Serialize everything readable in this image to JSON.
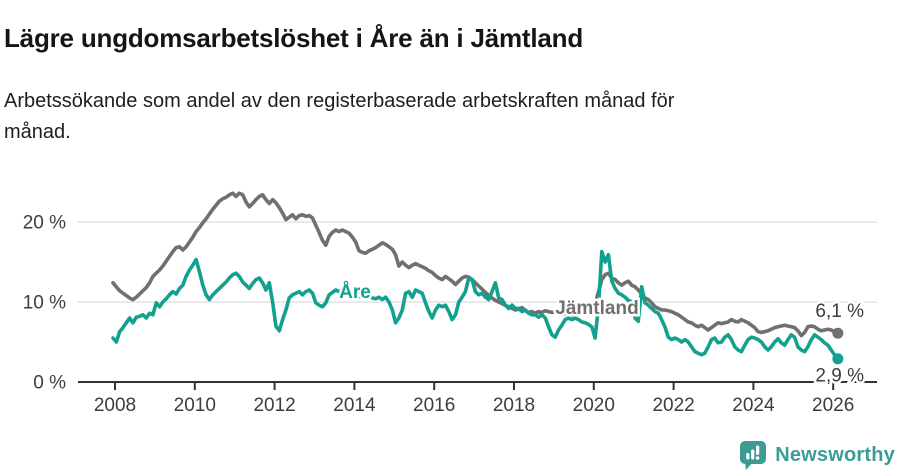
{
  "header": {
    "title": "Lägre ungdomsarbetslöshet i Åre än i Jämtland",
    "subtitle": "Arbetssökande som andel av den registerbaserade arbetskraften månad för månad."
  },
  "chart_data": {
    "type": "line",
    "title": "Lägre ungdomsarbetslöshet i Åre än i Jämtland",
    "subtitle": "Arbetssökande som andel av den registerbaserade arbetskraften månad för månad.",
    "x_unit": "month",
    "x_start": "2008-01",
    "x_end": "2026-03",
    "x_tick_years": [
      2008,
      2010,
      2012,
      2014,
      2016,
      2018,
      2020,
      2022,
      2024,
      2026
    ],
    "y_axis": {
      "ticks": [
        {
          "value": 0,
          "label": "0 %"
        },
        {
          "value": 10,
          "label": "10 %"
        },
        {
          "value": 20,
          "label": "20 %"
        }
      ],
      "min": 0,
      "max": 24,
      "grid": "horizontal"
    },
    "legend_position": "inline-labels",
    "series": [
      {
        "name": "Jämtland",
        "color": "#707070",
        "end_value": 6.1,
        "end_label": "6,1 %",
        "values": [
          12.4,
          11.9,
          11.4,
          11.1,
          10.8,
          10.5,
          10.3,
          10.6,
          11.0,
          11.4,
          11.8,
          12.4,
          13.2,
          13.6,
          14.0,
          14.5,
          15.1,
          15.7,
          16.3,
          16.8,
          16.9,
          16.5,
          16.9,
          17.5,
          18.1,
          18.8,
          19.3,
          19.9,
          20.4,
          21.0,
          21.6,
          22.1,
          22.6,
          22.9,
          23.1,
          23.4,
          23.6,
          23.2,
          23.6,
          23.4,
          22.5,
          21.9,
          22.3,
          22.8,
          23.2,
          23.4,
          22.8,
          22.3,
          22.8,
          22.4,
          21.8,
          21.1,
          20.3,
          20.6,
          20.9,
          20.4,
          20.8,
          20.9,
          20.7,
          20.8,
          20.5,
          19.6,
          18.7,
          17.7,
          17.1,
          18.2,
          18.7,
          19.0,
          18.8,
          19.0,
          18.8,
          18.6,
          18.1,
          17.5,
          16.4,
          16.2,
          16.1,
          16.4,
          16.6,
          16.8,
          17.1,
          17.4,
          17.2,
          16.9,
          16.6,
          15.9,
          14.5,
          15.0,
          14.6,
          14.3,
          14.6,
          14.8,
          14.6,
          14.4,
          14.2,
          13.9,
          13.7,
          13.3,
          13.0,
          12.8,
          13.2,
          12.9,
          12.6,
          12.2,
          12.6,
          13.0,
          13.2,
          13.1,
          12.8,
          12.4,
          12.0,
          11.6,
          11.2,
          10.8,
          10.5,
          10.2,
          10.0,
          9.8,
          9.6,
          9.4,
          9.2,
          9.0,
          9.1,
          9.3,
          8.9,
          8.7,
          8.8,
          8.6,
          8.8,
          8.7,
          8.9,
          8.8,
          8.7,
          8.8,
          8.6,
          8.7,
          8.5,
          8.6,
          8.4,
          8.5,
          8.6,
          8.8,
          8.9,
          9.1,
          9.4,
          9.8,
          11.3,
          12.8,
          13.4,
          13.6,
          13.0,
          12.8,
          12.4,
          12.1,
          12.4,
          12.6,
          12.1,
          11.9,
          11.5,
          11.0,
          10.5,
          10.3,
          9.9,
          9.4,
          9.2,
          9.0,
          9.0,
          8.9,
          8.8,
          8.6,
          8.4,
          8.1,
          7.8,
          7.5,
          7.4,
          7.1,
          6.9,
          7.1,
          6.8,
          6.5,
          6.8,
          7.1,
          7.4,
          7.3,
          7.4,
          7.5,
          7.8,
          7.6,
          7.5,
          7.8,
          7.6,
          7.4,
          7.1,
          6.8,
          6.3,
          6.2,
          6.3,
          6.4,
          6.6,
          6.8,
          6.9,
          7.0,
          7.1,
          7.0,
          6.9,
          6.8,
          6.4,
          5.8,
          6.2,
          6.9,
          7.0,
          6.9,
          6.6,
          6.4,
          6.5,
          6.6,
          6.5,
          6.3,
          6.1
        ]
      },
      {
        "name": "Åre",
        "color": "#13a18f",
        "end_value": 2.9,
        "end_label": "2,9 %",
        "values": [
          5.5,
          5.0,
          6.3,
          6.8,
          7.4,
          8.0,
          7.4,
          8.1,
          8.2,
          8.4,
          8.0,
          8.6,
          8.4,
          9.9,
          9.4,
          10.0,
          10.4,
          10.9,
          11.3,
          11.0,
          11.7,
          12.1,
          13.2,
          14.0,
          14.6,
          15.3,
          13.8,
          12.1,
          10.9,
          10.3,
          10.9,
          11.3,
          11.7,
          12.1,
          12.5,
          13.0,
          13.4,
          13.6,
          13.2,
          12.5,
          12.1,
          11.7,
          12.3,
          12.8,
          13.0,
          12.4,
          11.5,
          12.4,
          10.0,
          7.0,
          6.4,
          7.8,
          9.0,
          10.5,
          10.9,
          11.1,
          11.3,
          10.9,
          11.3,
          11.5,
          11.1,
          9.9,
          9.6,
          9.4,
          9.9,
          10.9,
          11.2,
          11.5,
          11.3,
          11.5,
          11.1,
          11.5,
          11.3,
          10.9,
          10.6,
          10.9,
          10.6,
          10.9,
          10.5,
          10.4,
          10.6,
          10.3,
          10.6,
          10.0,
          9.0,
          7.4,
          8.0,
          9.0,
          11.1,
          11.3,
          10.6,
          11.5,
          11.3,
          11.1,
          9.9,
          8.8,
          8.0,
          9.0,
          9.6,
          9.4,
          9.6,
          8.8,
          7.8,
          8.4,
          10.0,
          10.6,
          11.3,
          13.0,
          12.8,
          11.3,
          10.9,
          11.1,
          10.6,
          10.3,
          11.3,
          12.4,
          10.5,
          10.3,
          9.6,
          9.2,
          9.6,
          9.2,
          9.2,
          8.8,
          9.0,
          8.6,
          8.4,
          8.4,
          8.1,
          8.4,
          8.0,
          6.9,
          5.9,
          5.6,
          6.5,
          7.1,
          7.8,
          8.0,
          7.8,
          8.0,
          7.8,
          7.5,
          7.4,
          7.2,
          6.9,
          5.5,
          9.5,
          16.3,
          15.0,
          15.9,
          12.6,
          11.7,
          11.1,
          10.9,
          10.6,
          10.2,
          10.0,
          8.0,
          7.6,
          11.9,
          9.9,
          9.6,
          9.2,
          8.8,
          8.6,
          7.8,
          6.9,
          5.6,
          5.3,
          5.5,
          5.3,
          5.0,
          5.3,
          5.0,
          4.4,
          3.8,
          3.6,
          3.4,
          3.6,
          4.4,
          5.3,
          5.5,
          4.9,
          5.0,
          5.6,
          5.9,
          5.3,
          4.4,
          4.0,
          3.8,
          4.6,
          5.3,
          5.6,
          5.5,
          5.3,
          5.0,
          4.4,
          4.0,
          4.4,
          5.0,
          5.4,
          4.9,
          4.6,
          5.3,
          5.9,
          5.6,
          4.4,
          4.0,
          3.8,
          4.4,
          5.3,
          5.9,
          5.6,
          5.3,
          4.9,
          4.6,
          4.0,
          3.4,
          2.9
        ]
      }
    ]
  },
  "footer": {
    "brand": "Newsworthy",
    "logo_icon": "bar-chart-speech-bubble"
  },
  "colors": {
    "are_line": "#13a18f",
    "jamtland_line": "#707070",
    "brand_teal": "#3d9b96",
    "grid": "#e3e3e3",
    "axis": "#333333"
  }
}
